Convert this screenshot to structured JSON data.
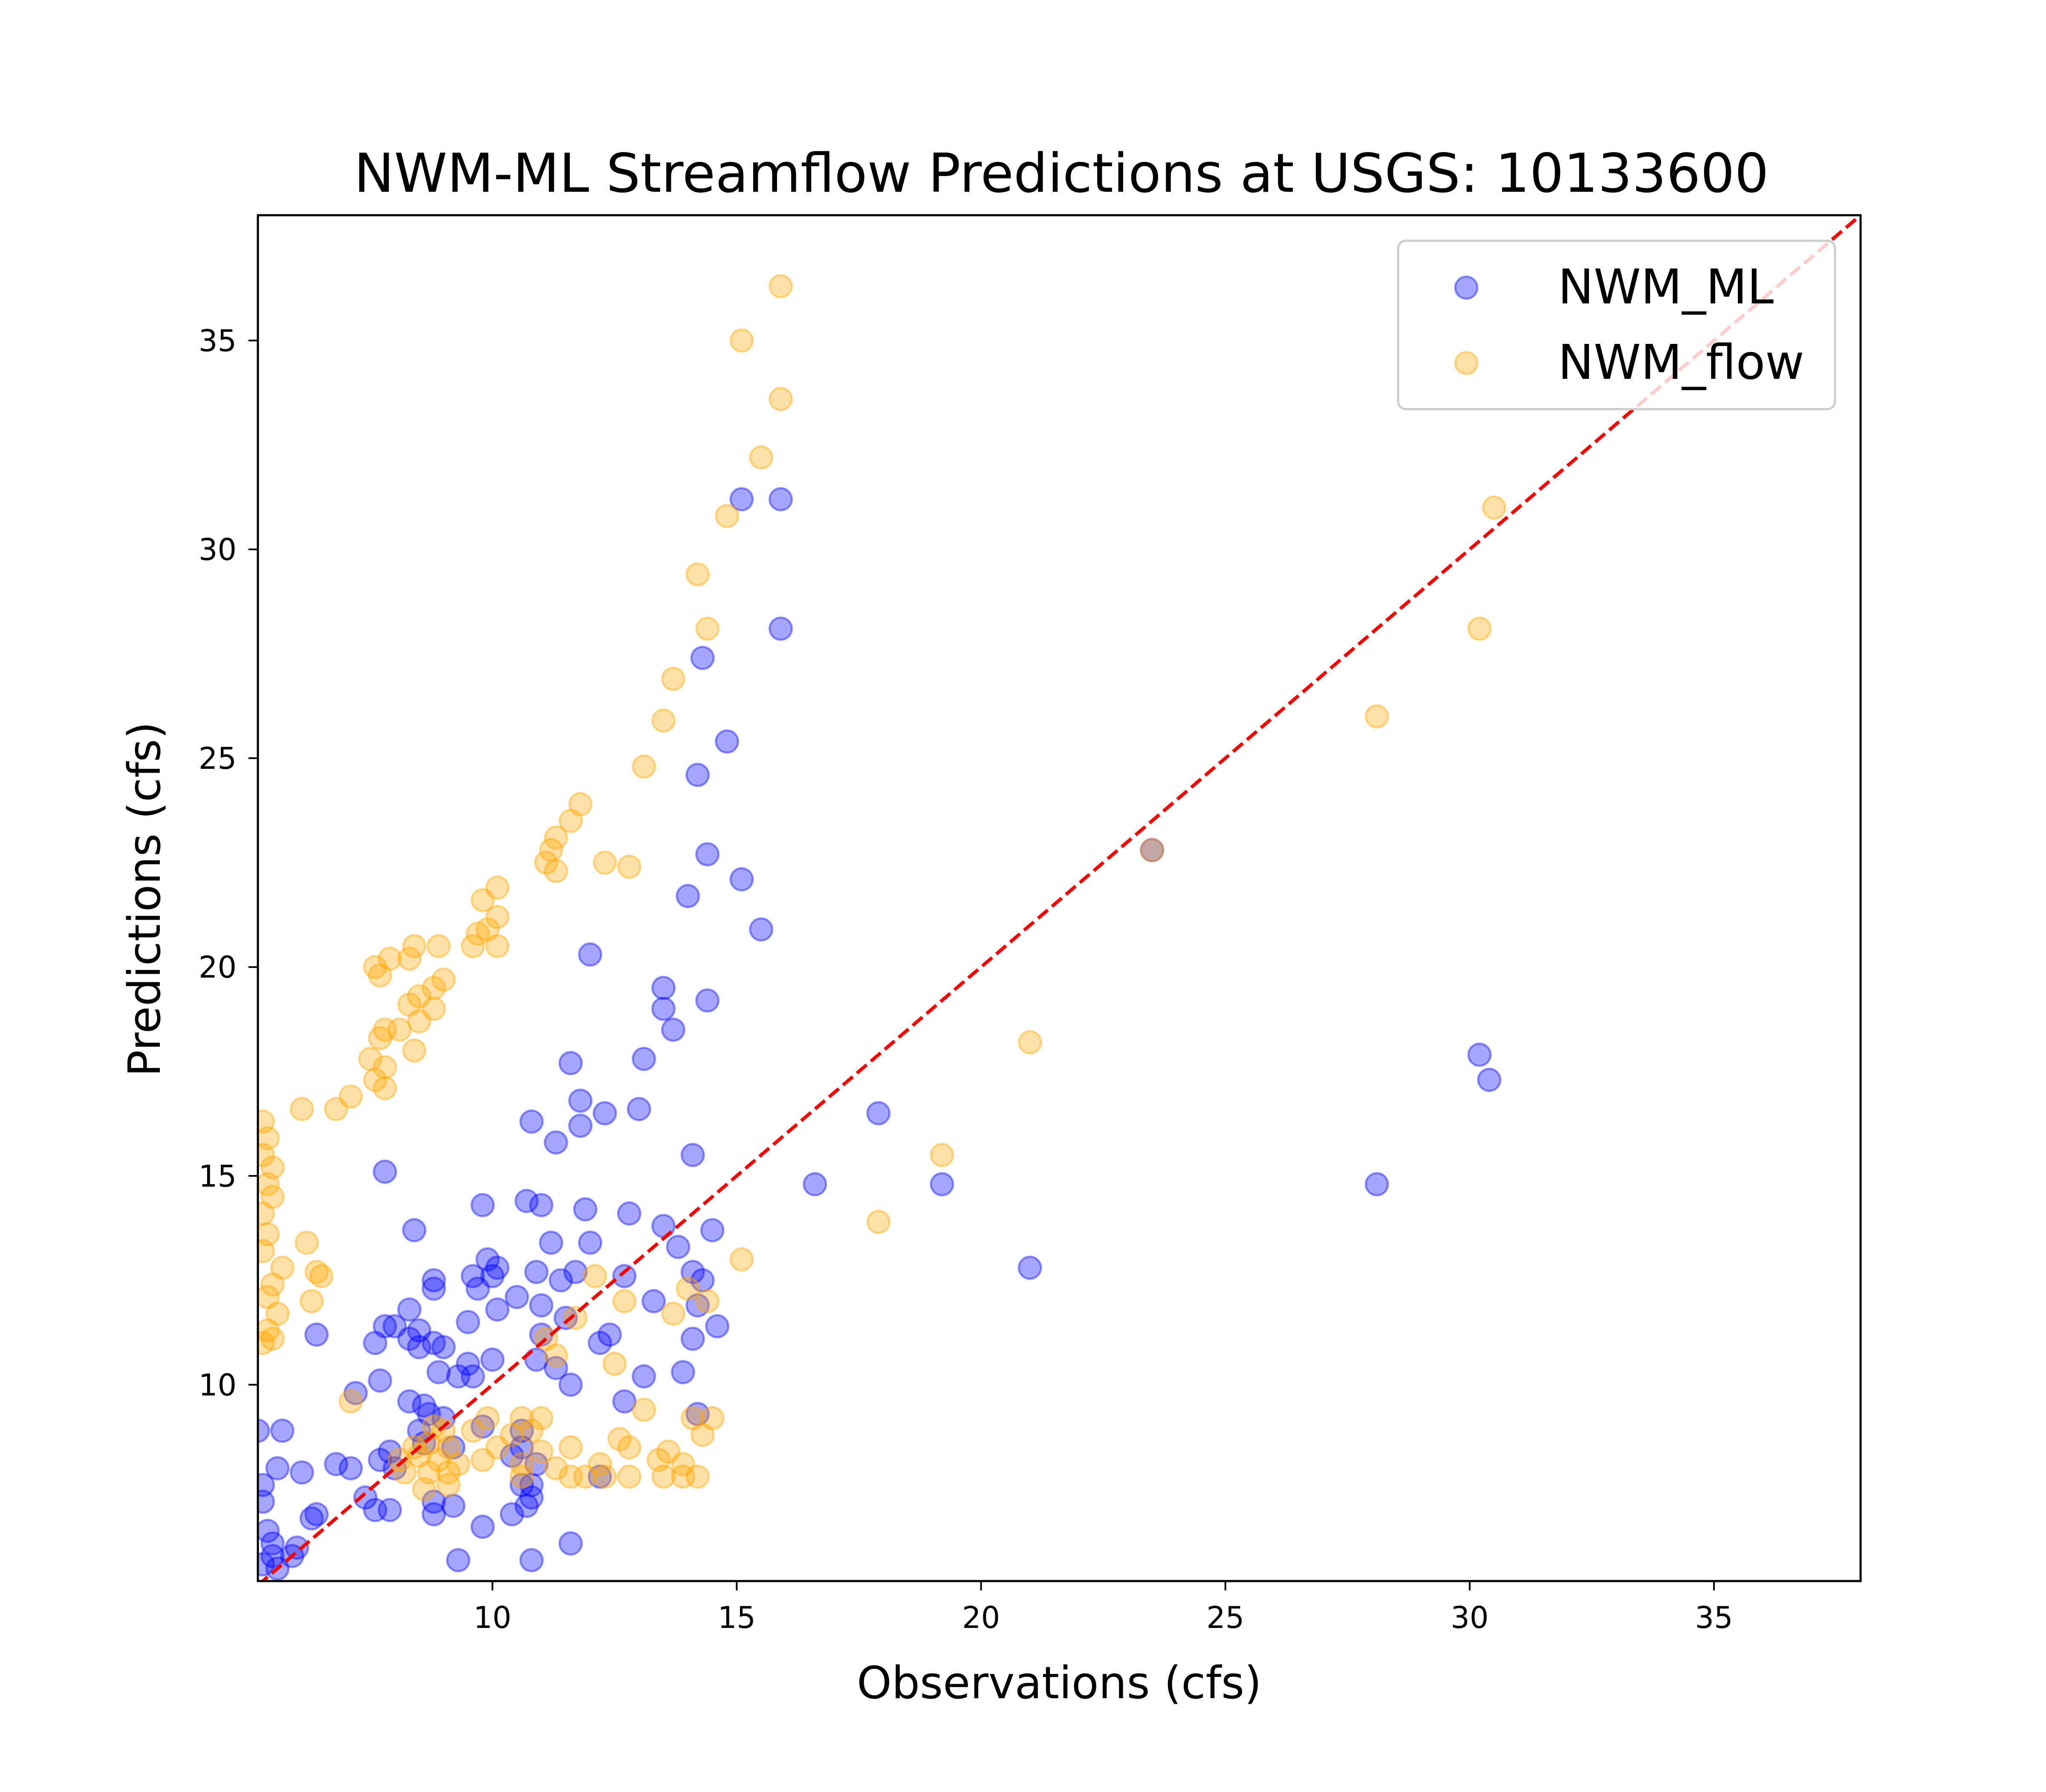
{
  "chart_data": {
    "type": "scatter",
    "title": "NWM-ML Streamflow Predictions at USGS: 10133600",
    "xlabel": "Observations (cfs)",
    "ylabel": "Predictions (cfs)",
    "xlim": [
      5.2,
      38
    ],
    "ylim": [
      5.3,
      38
    ],
    "xticks": [
      10,
      15,
      20,
      25,
      30,
      35
    ],
    "yticks": [
      10,
      15,
      20,
      25,
      30,
      35
    ],
    "grid": false,
    "legend": "upper right",
    "reference_line": {
      "from": [
        5.2,
        5.2
      ],
      "to": [
        38,
        38
      ],
      "color": "#ff0000",
      "style": "dashed"
    },
    "series": [
      {
        "name": "NWM_ML",
        "color": "#0000ff",
        "alpha": 0.35,
        "points": [
          [
            15.9,
            31.2
          ],
          [
            15.1,
            31.2
          ],
          [
            15.9,
            28.1
          ],
          [
            14.3,
            27.4
          ],
          [
            14.8,
            25.4
          ],
          [
            14.2,
            24.6
          ],
          [
            14.4,
            22.7
          ],
          [
            15.1,
            22.1
          ],
          [
            14.0,
            21.7
          ],
          [
            15.5,
            20.9
          ],
          [
            12.0,
            20.3
          ],
          [
            13.5,
            19.5
          ],
          [
            13.5,
            19.0
          ],
          [
            14.4,
            19.2
          ],
          [
            13.7,
            18.5
          ],
          [
            13.1,
            17.8
          ],
          [
            11.6,
            17.7
          ],
          [
            11.8,
            16.8
          ],
          [
            11.8,
            16.2
          ],
          [
            12.3,
            16.5
          ],
          [
            13.0,
            16.6
          ],
          [
            10.8,
            16.3
          ],
          [
            11.3,
            15.8
          ],
          [
            14.1,
            15.5
          ],
          [
            7.8,
            15.1
          ],
          [
            9.8,
            14.3
          ],
          [
            10.7,
            14.4
          ],
          [
            11.0,
            14.3
          ],
          [
            11.9,
            14.2
          ],
          [
            12.8,
            14.1
          ],
          [
            8.4,
            13.7
          ],
          [
            13.5,
            13.8
          ],
          [
            14.5,
            13.7
          ],
          [
            11.2,
            13.4
          ],
          [
            12.0,
            13.4
          ],
          [
            13.8,
            13.3
          ],
          [
            9.9,
            13.0
          ],
          [
            10.1,
            12.8
          ],
          [
            9.6,
            12.6
          ],
          [
            10.0,
            12.6
          ],
          [
            10.9,
            12.7
          ],
          [
            11.4,
            12.5
          ],
          [
            11.7,
            12.7
          ],
          [
            8.8,
            12.5
          ],
          [
            14.1,
            12.7
          ],
          [
            14.3,
            12.5
          ],
          [
            9.7,
            12.3
          ],
          [
            8.8,
            12.3
          ],
          [
            10.5,
            12.1
          ],
          [
            12.7,
            12.6
          ],
          [
            13.3,
            12.0
          ],
          [
            14.2,
            11.9
          ],
          [
            8.3,
            11.8
          ],
          [
            10.1,
            11.8
          ],
          [
            11.0,
            11.9
          ],
          [
            11.5,
            11.6
          ],
          [
            9.5,
            11.5
          ],
          [
            7.8,
            11.4
          ],
          [
            8.0,
            11.4
          ],
          [
            8.5,
            11.3
          ],
          [
            6.4,
            11.2
          ],
          [
            11.0,
            11.2
          ],
          [
            12.4,
            11.2
          ],
          [
            14.6,
            11.4
          ],
          [
            8.3,
            11.1
          ],
          [
            8.8,
            11.0
          ],
          [
            7.6,
            11.0
          ],
          [
            8.5,
            10.9
          ],
          [
            9.0,
            10.9
          ],
          [
            12.2,
            11.0
          ],
          [
            14.1,
            11.1
          ],
          [
            9.5,
            10.5
          ],
          [
            10.0,
            10.6
          ],
          [
            10.9,
            10.6
          ],
          [
            11.3,
            10.4
          ],
          [
            13.1,
            10.2
          ],
          [
            13.9,
            10.3
          ],
          [
            8.9,
            10.3
          ],
          [
            9.3,
            10.2
          ],
          [
            9.6,
            10.2
          ],
          [
            7.7,
            10.1
          ],
          [
            11.6,
            10.0
          ],
          [
            7.2,
            9.8
          ],
          [
            8.3,
            9.6
          ],
          [
            12.7,
            9.6
          ],
          [
            8.6,
            9.5
          ],
          [
            8.7,
            9.3
          ],
          [
            9.0,
            9.2
          ],
          [
            9.8,
            9.0
          ],
          [
            14.2,
            9.3
          ],
          [
            8.5,
            8.9
          ],
          [
            10.6,
            8.9
          ],
          [
            7.9,
            8.4
          ],
          [
            8.6,
            8.6
          ],
          [
            9.2,
            8.5
          ],
          [
            10.6,
            8.5
          ],
          [
            6.8,
            8.1
          ],
          [
            7.7,
            8.2
          ],
          [
            8.0,
            8.0
          ],
          [
            5.6,
            8.0
          ],
          [
            7.1,
            8.0
          ],
          [
            6.1,
            7.9
          ],
          [
            10.4,
            8.3
          ],
          [
            10.9,
            8.1
          ],
          [
            12.2,
            7.8
          ],
          [
            10.6,
            7.6
          ],
          [
            10.8,
            7.3
          ],
          [
            10.8,
            7.6
          ],
          [
            7.4,
            7.3
          ],
          [
            7.6,
            7.0
          ],
          [
            7.9,
            7.0
          ],
          [
            8.8,
            7.2
          ],
          [
            9.2,
            7.1
          ],
          [
            8.8,
            6.9
          ],
          [
            6.4,
            6.9
          ],
          [
            6.3,
            6.8
          ],
          [
            10.4,
            6.9
          ],
          [
            10.7,
            7.1
          ],
          [
            9.8,
            6.6
          ],
          [
            6.0,
            6.1
          ],
          [
            5.9,
            5.9
          ],
          [
            11.6,
            6.2
          ],
          [
            9.3,
            5.8
          ],
          [
            10.8,
            5.8
          ],
          [
            5.3,
            7.2
          ],
          [
            5.3,
            7.6
          ],
          [
            5.5,
            6.2
          ],
          [
            5.5,
            5.9
          ],
          [
            5.3,
            5.7
          ],
          [
            5.6,
            5.6
          ],
          [
            5.4,
            6.5
          ],
          [
            5.2,
            8.9
          ],
          [
            5.7,
            8.9
          ],
          [
            16.6,
            14.8
          ],
          [
            19.2,
            14.8
          ],
          [
            17.9,
            16.5
          ],
          [
            21.0,
            12.8
          ],
          [
            23.5,
            22.8
          ],
          [
            28.1,
            14.8
          ],
          [
            30.2,
            17.9
          ],
          [
            30.4,
            17.3
          ]
        ]
      },
      {
        "name": "NWM_flow",
        "color": "#ffa500",
        "alpha": 0.35,
        "points": [
          [
            15.9,
            36.3
          ],
          [
            15.1,
            35.0
          ],
          [
            15.9,
            33.6
          ],
          [
            15.5,
            32.2
          ],
          [
            14.8,
            30.8
          ],
          [
            14.2,
            29.4
          ],
          [
            14.4,
            28.1
          ],
          [
            13.7,
            26.9
          ],
          [
            13.5,
            25.9
          ],
          [
            13.1,
            24.8
          ],
          [
            11.8,
            23.9
          ],
          [
            11.6,
            23.5
          ],
          [
            11.3,
            23.1
          ],
          [
            11.2,
            22.8
          ],
          [
            11.1,
            22.5
          ],
          [
            11.3,
            22.3
          ],
          [
            12.3,
            22.5
          ],
          [
            12.8,
            22.4
          ],
          [
            10.1,
            21.9
          ],
          [
            9.8,
            21.6
          ],
          [
            10.1,
            21.2
          ],
          [
            9.9,
            20.9
          ],
          [
            9.7,
            20.8
          ],
          [
            9.6,
            20.5
          ],
          [
            10.1,
            20.5
          ],
          [
            8.4,
            20.5
          ],
          [
            8.9,
            20.5
          ],
          [
            8.3,
            20.2
          ],
          [
            7.9,
            20.2
          ],
          [
            7.6,
            20.0
          ],
          [
            7.7,
            19.8
          ],
          [
            9.0,
            19.7
          ],
          [
            8.8,
            19.5
          ],
          [
            8.5,
            19.3
          ],
          [
            8.3,
            19.1
          ],
          [
            8.8,
            19.0
          ],
          [
            8.5,
            18.7
          ],
          [
            7.8,
            18.5
          ],
          [
            7.7,
            18.3
          ],
          [
            8.1,
            18.5
          ],
          [
            8.4,
            18.0
          ],
          [
            7.5,
            17.8
          ],
          [
            7.8,
            17.6
          ],
          [
            7.6,
            17.3
          ],
          [
            7.8,
            17.1
          ],
          [
            7.1,
            16.9
          ],
          [
            6.1,
            16.6
          ],
          [
            6.8,
            16.6
          ],
          [
            5.3,
            16.3
          ],
          [
            5.4,
            15.9
          ],
          [
            5.3,
            15.5
          ],
          [
            5.5,
            15.2
          ],
          [
            5.4,
            14.8
          ],
          [
            5.5,
            14.5
          ],
          [
            5.3,
            14.1
          ],
          [
            5.4,
            13.6
          ],
          [
            5.3,
            13.2
          ],
          [
            6.2,
            13.4
          ],
          [
            5.7,
            12.8
          ],
          [
            6.4,
            12.7
          ],
          [
            6.5,
            12.6
          ],
          [
            5.5,
            12.4
          ],
          [
            5.4,
            12.1
          ],
          [
            5.6,
            11.7
          ],
          [
            5.4,
            11.3
          ],
          [
            5.5,
            11.1
          ],
          [
            5.3,
            11.0
          ],
          [
            6.3,
            12.0
          ],
          [
            12.1,
            12.6
          ],
          [
            12.7,
            12.0
          ],
          [
            14.0,
            12.3
          ],
          [
            14.4,
            12.0
          ],
          [
            13.7,
            11.7
          ],
          [
            11.7,
            11.6
          ],
          [
            11.1,
            11.1
          ],
          [
            11.3,
            10.7
          ],
          [
            12.5,
            10.5
          ],
          [
            13.1,
            9.4
          ],
          [
            15.1,
            13.0
          ],
          [
            7.1,
            9.6
          ],
          [
            9.9,
            9.2
          ],
          [
            10.6,
            9.2
          ],
          [
            11.0,
            9.2
          ],
          [
            14.1,
            9.2
          ],
          [
            14.5,
            9.2
          ],
          [
            8.8,
            9.0
          ],
          [
            9.0,
            8.9
          ],
          [
            9.6,
            8.9
          ],
          [
            10.4,
            8.8
          ],
          [
            10.8,
            8.9
          ],
          [
            12.6,
            8.7
          ],
          [
            14.3,
            8.8
          ],
          [
            8.4,
            8.5
          ],
          [
            8.7,
            8.6
          ],
          [
            9.1,
            8.5
          ],
          [
            10.1,
            8.5
          ],
          [
            11.0,
            8.4
          ],
          [
            11.6,
            8.5
          ],
          [
            12.8,
            8.5
          ],
          [
            13.6,
            8.4
          ],
          [
            8.1,
            8.2
          ],
          [
            8.5,
            8.3
          ],
          [
            8.9,
            8.2
          ],
          [
            9.3,
            8.1
          ],
          [
            9.8,
            8.2
          ],
          [
            10.6,
            8.1
          ],
          [
            11.3,
            8.0
          ],
          [
            12.2,
            8.1
          ],
          [
            13.4,
            8.2
          ],
          [
            13.9,
            8.1
          ],
          [
            8.2,
            7.9
          ],
          [
            8.7,
            7.9
          ],
          [
            9.1,
            7.9
          ],
          [
            10.6,
            7.8
          ],
          [
            11.6,
            7.8
          ],
          [
            12.3,
            7.8
          ],
          [
            12.8,
            7.8
          ],
          [
            13.5,
            7.8
          ],
          [
            14.2,
            7.8
          ],
          [
            8.6,
            7.5
          ],
          [
            9.1,
            7.6
          ],
          [
            11.9,
            7.8
          ],
          [
            13.9,
            7.8
          ],
          [
            17.9,
            13.9
          ],
          [
            19.2,
            15.5
          ],
          [
            21.0,
            18.2
          ],
          [
            23.5,
            22.8
          ],
          [
            28.1,
            26.0
          ],
          [
            30.2,
            28.1
          ],
          [
            30.5,
            31.0
          ]
        ]
      }
    ]
  }
}
